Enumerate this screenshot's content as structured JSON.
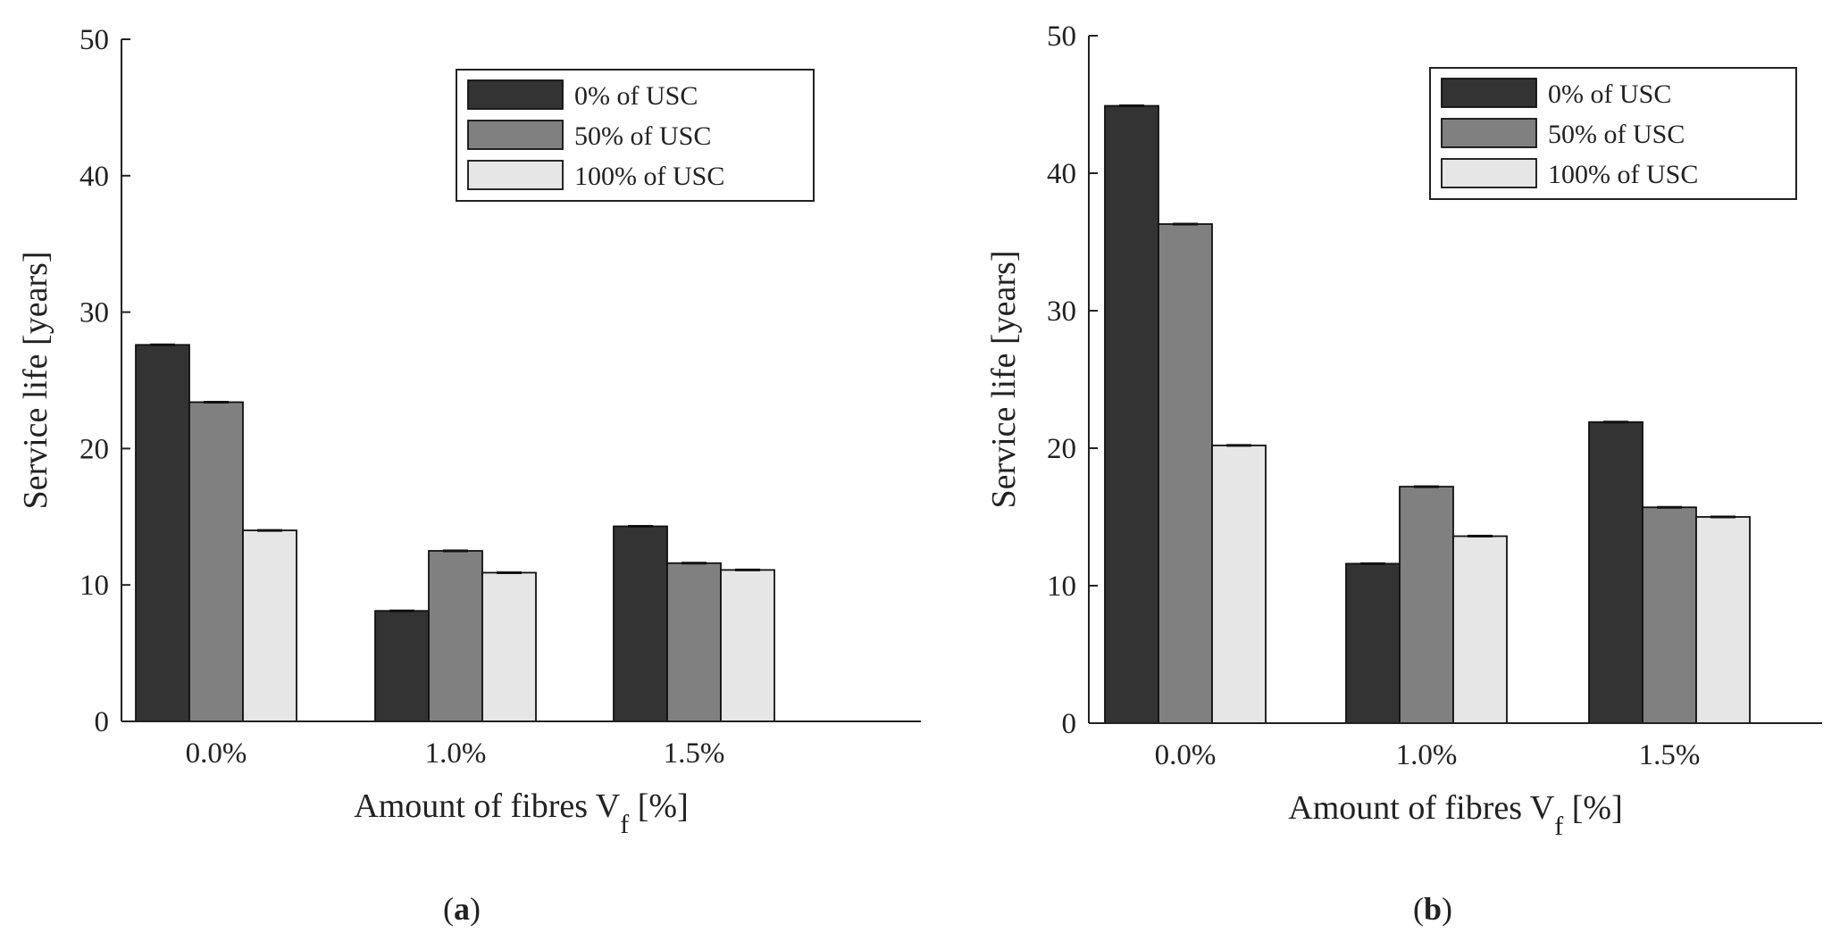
{
  "chart_data": [
    {
      "type": "bar",
      "panel_label": "a",
      "categories": [
        "0.0%",
        "1.0%",
        "1.5%"
      ],
      "series": [
        {
          "name": "0% of USC",
          "values": [
            27.6,
            8.1,
            14.3
          ],
          "color": "#333333"
        },
        {
          "name": "50% of USC",
          "values": [
            23.4,
            12.5,
            11.6
          ],
          "color": "#808080"
        },
        {
          "name": "100% of USC",
          "values": [
            14.0,
            10.9,
            11.1
          ],
          "color": "#e6e6e6"
        }
      ],
      "title": "",
      "xlabel_main": "Amount of fibres V",
      "xlabel_sub": "f",
      "xlabel_unit": " [%]",
      "ylabel": "Service life [years]",
      "ylim": [
        0,
        50
      ],
      "yticks": [
        0,
        10,
        20,
        30,
        40,
        50
      ],
      "legend_position": "top-right",
      "grid": false
    },
    {
      "type": "bar",
      "panel_label": "b",
      "categories": [
        "0.0%",
        "1.0%",
        "1.5%"
      ],
      "series": [
        {
          "name": "0% of USC",
          "values": [
            44.9,
            11.6,
            21.9
          ],
          "color": "#333333"
        },
        {
          "name": "50% of USC",
          "values": [
            36.3,
            17.2,
            15.7
          ],
          "color": "#808080"
        },
        {
          "name": "100% of USC",
          "values": [
            20.2,
            13.6,
            15.0
          ],
          "color": "#e6e6e6"
        }
      ],
      "title": "",
      "xlabel_main": "Amount of fibres V",
      "xlabel_sub": "f",
      "xlabel_unit": " [%]",
      "ylabel": "Service life [years]",
      "ylim": [
        0,
        50
      ],
      "yticks": [
        0,
        10,
        20,
        30,
        40,
        50
      ],
      "legend_position": "top-right",
      "grid": false
    }
  ]
}
